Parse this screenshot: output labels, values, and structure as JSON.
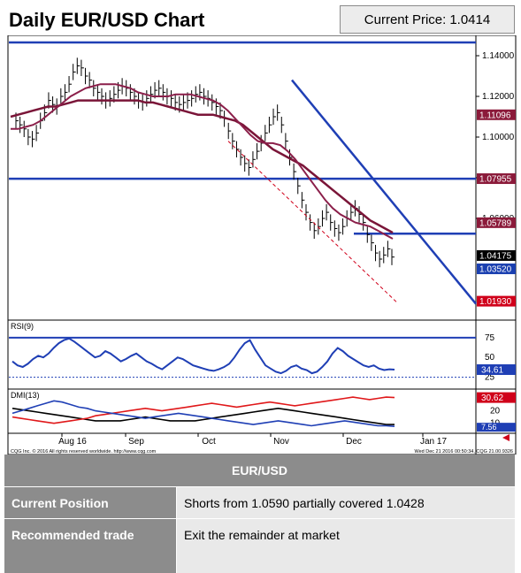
{
  "header": {
    "title": "Daily EUR/USD Chart",
    "price_label": "Current Price:",
    "price_value": "1.0414"
  },
  "chart_data": {
    "type": "line",
    "x_ticks": [
      "Aug 16",
      "Sep",
      "Oct",
      "Nov",
      "Dec",
      "Jan 17"
    ],
    "price_axis": {
      "ylim": [
        1.01,
        1.15
      ],
      "ticks": [
        "1.14000",
        "1.12000",
        "1.10000",
        "1.08000",
        "1.06000"
      ],
      "markers": [
        {
          "label": "1.11096",
          "value": 1.11096,
          "color": "#8b1a3a"
        },
        {
          "label": "1.07955",
          "value": 1.07955,
          "color": "#8b1a3a"
        },
        {
          "label": "1.05789",
          "value": 1.05789,
          "color": "#8b1a3a"
        },
        {
          "label": "1.04175",
          "value": 1.04175,
          "color": "#000000"
        },
        {
          "label": "1.03520",
          "value": 1.0352,
          "color": "#1a3fb0"
        },
        {
          "label": "1.01930",
          "value": 1.0193,
          "color": "#d0001a"
        }
      ],
      "support_resistance": [
        1.1465,
        1.0795,
        1.0525
      ]
    },
    "close": [
      1.108,
      1.106,
      1.104,
      1.1,
      1.099,
      1.102,
      1.108,
      1.112,
      1.118,
      1.116,
      1.115,
      1.12,
      1.122,
      1.126,
      1.132,
      1.135,
      1.134,
      1.13,
      1.128,
      1.124,
      1.122,
      1.12,
      1.118,
      1.119,
      1.121,
      1.123,
      1.125,
      1.124,
      1.122,
      1.12,
      1.118,
      1.117,
      1.119,
      1.121,
      1.123,
      1.124,
      1.122,
      1.12,
      1.119,
      1.117,
      1.116,
      1.117,
      1.118,
      1.119,
      1.121,
      1.122,
      1.12,
      1.119,
      1.117,
      1.115,
      1.113,
      1.109,
      1.103,
      1.098,
      1.094,
      1.09,
      1.087,
      1.085,
      1.089,
      1.093,
      1.097,
      1.102,
      1.106,
      1.11,
      1.112,
      1.106,
      1.098,
      1.09,
      1.083,
      1.076,
      1.069,
      1.063,
      1.058,
      1.054,
      1.056,
      1.06,
      1.063,
      1.058,
      1.055,
      1.053,
      1.056,
      1.06,
      1.063,
      1.065,
      1.062,
      1.058,
      1.052,
      1.048,
      1.043,
      1.04,
      1.042,
      1.045,
      1.041
    ],
    "ma_fast": [
      1.104,
      1.104,
      1.105,
      1.106,
      1.108,
      1.111,
      1.114,
      1.117,
      1.12,
      1.122,
      1.124,
      1.125,
      1.126,
      1.126,
      1.126,
      1.125,
      1.124,
      1.122,
      1.121,
      1.12,
      1.12,
      1.12,
      1.121,
      1.121,
      1.121,
      1.12,
      1.119,
      1.118,
      1.116,
      1.113,
      1.109,
      1.105,
      1.101,
      1.098,
      1.097,
      1.097,
      1.096,
      1.093,
      1.089,
      1.084,
      1.079,
      1.074,
      1.069,
      1.065,
      1.062,
      1.06,
      1.058,
      1.057,
      1.056,
      1.054,
      1.052,
      1.05
    ],
    "ma_slow": [
      1.11,
      1.111,
      1.112,
      1.113,
      1.114,
      1.115,
      1.115,
      1.116,
      1.117,
      1.118,
      1.118,
      1.118,
      1.118,
      1.118,
      1.118,
      1.118,
      1.118,
      1.118,
      1.117,
      1.117,
      1.116,
      1.115,
      1.114,
      1.113,
      1.112,
      1.111,
      1.111,
      1.111,
      1.11,
      1.109,
      1.108,
      1.106,
      1.103,
      1.1,
      1.097,
      1.094,
      1.092,
      1.09,
      1.088,
      1.086,
      1.083,
      1.08,
      1.077,
      1.074,
      1.071,
      1.068,
      1.065,
      1.062,
      1.059,
      1.057,
      1.055,
      1.053
    ],
    "rsi": {
      "label": "RSI(9)",
      "ticks": [
        "75",
        "50",
        "25"
      ],
      "current": "34.61",
      "values": [
        45,
        40,
        38,
        42,
        48,
        52,
        50,
        55,
        62,
        68,
        72,
        74,
        70,
        65,
        60,
        55,
        50,
        52,
        58,
        55,
        50,
        45,
        48,
        52,
        55,
        50,
        45,
        42,
        38,
        35,
        40,
        45,
        50,
        48,
        44,
        40,
        38,
        36,
        34,
        33,
        35,
        38,
        42,
        50,
        60,
        68,
        72,
        60,
        50,
        40,
        36,
        32,
        30,
        33,
        38,
        40,
        36,
        34,
        30,
        32,
        38,
        45,
        55,
        62,
        58,
        52,
        48,
        44,
        40,
        38,
        40,
        36,
        34,
        35,
        34.61
      ]
    },
    "dmi": {
      "label": "DMI(13)",
      "ticks": [
        "30",
        "20",
        "10"
      ],
      "dmi_minus": "30.62",
      "dmi_plus": "7.56",
      "plus": [
        18,
        20,
        22,
        24,
        26,
        28,
        27,
        25,
        23,
        22,
        20,
        19,
        18,
        17,
        16,
        15,
        14,
        15,
        16,
        17,
        18,
        17,
        16,
        15,
        14,
        13,
        12,
        11,
        10,
        9,
        10,
        11,
        12,
        11,
        10,
        9,
        8,
        9,
        10,
        11,
        12,
        11,
        10,
        9,
        8,
        8,
        7.56
      ],
      "minus": [
        15,
        14,
        13,
        12,
        11,
        10,
        11,
        12,
        13,
        14,
        16,
        17,
        18,
        19,
        20,
        21,
        22,
        21,
        20,
        21,
        22,
        23,
        24,
        25,
        26,
        25,
        24,
        23,
        24,
        25,
        26,
        27,
        26,
        25,
        24,
        25,
        26,
        27,
        28,
        29,
        30,
        31,
        30,
        29,
        30,
        31,
        30.62
      ],
      "adx": [
        22,
        21,
        20,
        19,
        18,
        17,
        16,
        15,
        14,
        13,
        12,
        12,
        12,
        12,
        13,
        14,
        15,
        14,
        13,
        12,
        12,
        12,
        12,
        13,
        14,
        15,
        16,
        17,
        18,
        19,
        20,
        21,
        22,
        21,
        20,
        19,
        18,
        17,
        16,
        15,
        14,
        13,
        12,
        11,
        10,
        9,
        9
      ]
    },
    "footer_text": "CQG Inc. © 2016 All rights reserved worldwide. http://www.cqg.com",
    "footer_time": "Wed Dec 21 2016 00:50:34, CQG 21.00.9326"
  },
  "table": {
    "header": "EUR/USD",
    "rows": [
      {
        "label": "Current Position",
        "value": "Shorts from 1.0590 partially covered 1.0428"
      },
      {
        "label": "Recommended trade",
        "value": "Exit the remainder at market"
      }
    ]
  }
}
